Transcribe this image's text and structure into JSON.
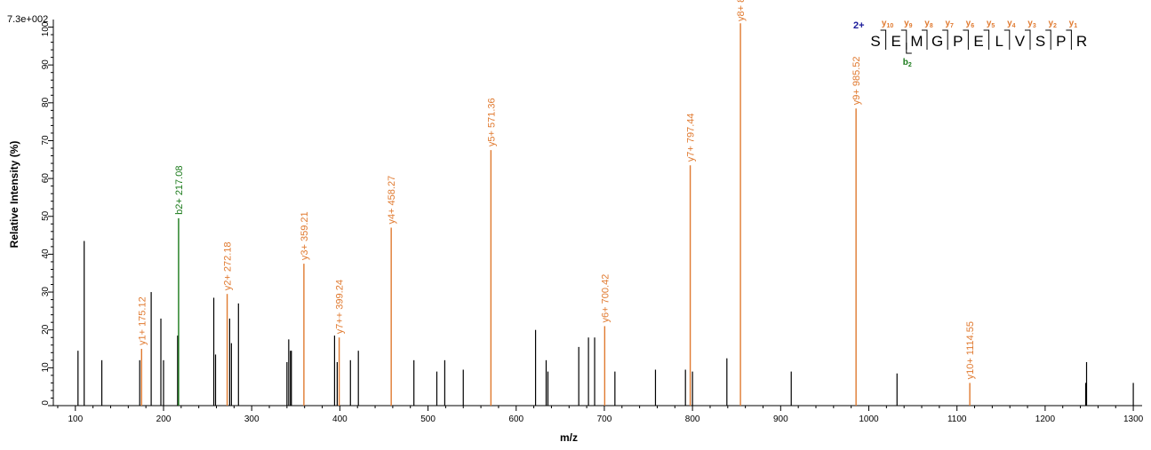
{
  "scale_label": "7.3e+002",
  "chart_data": {
    "type": "bar",
    "xlabel": "m/z",
    "ylabel": "Relative   Intensity (%)",
    "xlim": [
      75,
      1310
    ],
    "ylim": [
      0,
      102
    ],
    "xticks": [
      100,
      200,
      300,
      400,
      500,
      600,
      700,
      800,
      900,
      1000,
      1100,
      1200,
      1300
    ],
    "yticks": [
      0,
      10,
      20,
      30,
      40,
      50,
      60,
      70,
      80,
      90,
      100
    ],
    "grid": false,
    "colors": {
      "unmatched": "#000000",
      "y_ion": "#e07a30",
      "b_ion": "#1a7a1a",
      "charge": "#1a1a9a"
    },
    "peaks": [
      {
        "mz": 103,
        "y": 14.5
      },
      {
        "mz": 110,
        "y": 43.5
      },
      {
        "mz": 130,
        "y": 12
      },
      {
        "mz": 173,
        "y": 12
      },
      {
        "mz": 186,
        "y": 30
      },
      {
        "mz": 197,
        "y": 23
      },
      {
        "mz": 200,
        "y": 12
      },
      {
        "mz": 216,
        "y": 18.5
      },
      {
        "mz": 257,
        "y": 28.5
      },
      {
        "mz": 259,
        "y": 13.5
      },
      {
        "mz": 275,
        "y": 23
      },
      {
        "mz": 277,
        "y": 16.5
      },
      {
        "mz": 285,
        "y": 27
      },
      {
        "mz": 340,
        "y": 11.5
      },
      {
        "mz": 342,
        "y": 17.5
      },
      {
        "mz": 344,
        "y": 14.5
      },
      {
        "mz": 345,
        "y": 14.5
      },
      {
        "mz": 394,
        "y": 18.5
      },
      {
        "mz": 397,
        "y": 11.5
      },
      {
        "mz": 412,
        "y": 12
      },
      {
        "mz": 421,
        "y": 14.5
      },
      {
        "mz": 484,
        "y": 12
      },
      {
        "mz": 510,
        "y": 9
      },
      {
        "mz": 519,
        "y": 12
      },
      {
        "mz": 540,
        "y": 9.5
      },
      {
        "mz": 622,
        "y": 20
      },
      {
        "mz": 634,
        "y": 12
      },
      {
        "mz": 636,
        "y": 9
      },
      {
        "mz": 671,
        "y": 15.5
      },
      {
        "mz": 682,
        "y": 18
      },
      {
        "mz": 689,
        "y": 18
      },
      {
        "mz": 712,
        "y": 9
      },
      {
        "mz": 758,
        "y": 9.5
      },
      {
        "mz": 792,
        "y": 9.5
      },
      {
        "mz": 800,
        "y": 9
      },
      {
        "mz": 839,
        "y": 12.5
      },
      {
        "mz": 912,
        "y": 9
      },
      {
        "mz": 1032,
        "y": 8.5
      },
      {
        "mz": 1246,
        "y": 6
      },
      {
        "mz": 1247,
        "y": 11.5
      },
      {
        "mz": 1300,
        "y": 6
      }
    ],
    "annotated_peaks": [
      {
        "label": "y1+ 175.12",
        "mz": 175.12,
        "y": 15,
        "ion": "y"
      },
      {
        "label": "b2+ 217.08",
        "mz": 217.08,
        "y": 49.5,
        "ion": "b"
      },
      {
        "label": "y2+ 272.18",
        "mz": 272.18,
        "y": 29.5,
        "ion": "y"
      },
      {
        "label": "y3+ 359.21",
        "mz": 359.21,
        "y": 37.5,
        "ion": "y"
      },
      {
        "label": "y7++ 399.24",
        "mz": 399.24,
        "y": 18,
        "ion": "y"
      },
      {
        "label": "y4+ 458.27",
        "mz": 458.27,
        "y": 47,
        "ion": "y"
      },
      {
        "label": "y5+ 571.36",
        "mz": 571.36,
        "y": 67.5,
        "ion": "y"
      },
      {
        "label": "y6+ 700.42",
        "mz": 700.42,
        "y": 21,
        "ion": "y"
      },
      {
        "label": "y7+ 797.44",
        "mz": 797.44,
        "y": 63.5,
        "ion": "y"
      },
      {
        "label": "y8+ 854.4",
        "mz": 854.4,
        "y": 101,
        "ion": "y"
      },
      {
        "label": "y9+ 985.52",
        "mz": 985.52,
        "y": 78.5,
        "ion": "y"
      },
      {
        "label": "y10+ 1114.55",
        "mz": 1114.55,
        "y": 6,
        "ion": "y"
      }
    ]
  },
  "peptide": {
    "charge": "2+",
    "residues": [
      "S",
      "E",
      "M",
      "G",
      "P",
      "E",
      "L",
      "V",
      "S",
      "P",
      "R"
    ],
    "y_ions": [
      {
        "label": "y",
        "sub": "10"
      },
      {
        "label": "y",
        "sub": "9"
      },
      {
        "label": "y",
        "sub": "8"
      },
      {
        "label": "y",
        "sub": "7"
      },
      {
        "label": "y",
        "sub": "6"
      },
      {
        "label": "y",
        "sub": "5"
      },
      {
        "label": "y",
        "sub": "4"
      },
      {
        "label": "y",
        "sub": "3"
      },
      {
        "label": "y",
        "sub": "2"
      },
      {
        "label": "y",
        "sub": "1"
      }
    ],
    "b_ions": [
      {
        "label": "b",
        "sub": "2"
      }
    ]
  }
}
